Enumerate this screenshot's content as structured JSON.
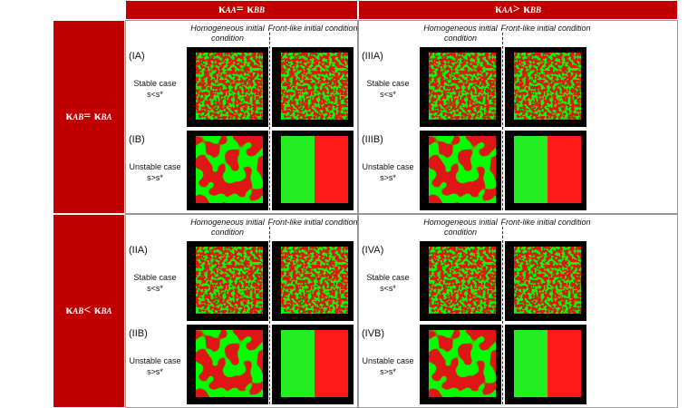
{
  "columns": [
    {
      "parts": [
        "κ",
        "AA",
        " = κ",
        "BB"
      ]
    },
    {
      "parts": [
        "κ",
        "AA",
        " > κ",
        "BB"
      ]
    }
  ],
  "rows": [
    {
      "parts": [
        "κ",
        "AB",
        " = κ",
        "BA"
      ]
    },
    {
      "parts": [
        "κ",
        "AB",
        " < κ",
        "BA"
      ]
    }
  ],
  "cells": [
    {
      "headers": [
        "Homogeneous initial condition",
        "Front-like initial condition"
      ],
      "cases": [
        {
          "id": "(IA)",
          "label": "Stable case",
          "condition": "s<s*"
        },
        {
          "id": "(IB)",
          "label": "Unstable case",
          "condition": "s>s*"
        }
      ]
    },
    {
      "headers": [
        "Homogeneous initial condition",
        "Front-like initial condition"
      ],
      "cases": [
        {
          "id": "(IIIA)",
          "label": "Stable case",
          "condition": "s<s*"
        },
        {
          "id": "(IIIB)",
          "label": "Unstable case",
          "condition": "s>s*"
        }
      ]
    },
    {
      "headers": [
        "Homogeneous initial condition",
        "Front-like initial condition"
      ],
      "cases": [
        {
          "id": "(IIA)",
          "label": "Stable case",
          "condition": "s<s*"
        },
        {
          "id": "(IIB)",
          "label": "Unstable case",
          "condition": "s>s*"
        }
      ]
    },
    {
      "headers": [
        "Homogeneous initial condition",
        "Front-like initial condition"
      ],
      "cases": [
        {
          "id": "(IVA)",
          "label": "Stable case",
          "condition": "s<s*"
        },
        {
          "id": "(IVB)",
          "label": "Unstable case",
          "condition": "s>s*"
        }
      ]
    }
  ]
}
